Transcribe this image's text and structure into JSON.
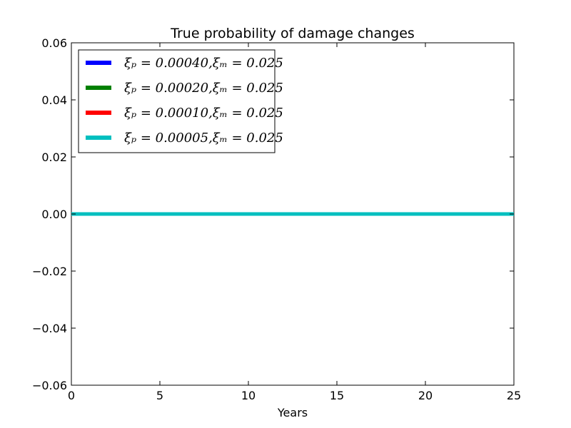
{
  "chart_data": {
    "type": "line",
    "title": "True probability of damage changes",
    "xlabel": "Years",
    "ylabel": "",
    "xlim": [
      0,
      25
    ],
    "ylim": [
      -0.06,
      0.06
    ],
    "xticks": [
      0,
      5,
      10,
      15,
      20,
      25
    ],
    "yticks": [
      -0.06,
      -0.04,
      -0.02,
      0.0,
      0.02,
      0.04,
      0.06
    ],
    "ytick_labels": [
      "−0.06",
      "−0.04",
      "−0.02",
      "0.00",
      "0.02",
      "0.04",
      "0.06"
    ],
    "xtick_labels": [
      "0",
      "5",
      "10",
      "15",
      "20",
      "25"
    ],
    "grid": false,
    "legend_position": "top-left",
    "series": [
      {
        "name": "ξₚ = 0.00040,ξₘ = 0.025",
        "color": "#0000ff",
        "x": [
          0,
          25
        ],
        "y": [
          0.0,
          0.0
        ]
      },
      {
        "name": "ξₚ = 0.00020,ξₘ = 0.025",
        "color": "#008000",
        "x": [
          0,
          25
        ],
        "y": [
          0.0,
          0.0
        ]
      },
      {
        "name": "ξₚ = 0.00010,ξₘ = 0.025",
        "color": "#ff0000",
        "x": [
          0,
          25
        ],
        "y": [
          0.0,
          0.0
        ]
      },
      {
        "name": "ξₚ = 0.00005,ξₘ = 0.025",
        "color": "#00bfbf",
        "x": [
          0,
          25
        ],
        "y": [
          0.0,
          0.0
        ]
      }
    ]
  }
}
